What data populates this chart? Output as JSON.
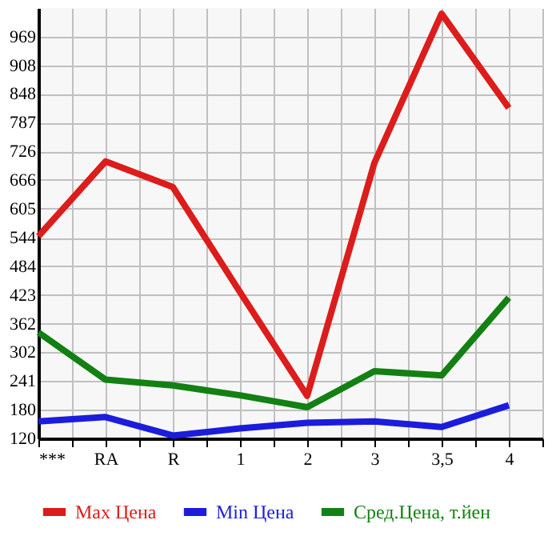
{
  "chart_data": {
    "type": "line",
    "categories": [
      "***",
      "RA",
      "R",
      "1",
      "2",
      "3",
      "3,5",
      "4"
    ],
    "series": [
      {
        "name": "Max Цена",
        "color": "#dd1c1c",
        "values": [
          547,
          705,
          651,
          429,
          210,
          702,
          1017,
          818
        ]
      },
      {
        "name": "Min Цена",
        "color": "#1c1cdd",
        "values": [
          156,
          165,
          126,
          141,
          153,
          156,
          144,
          190
        ]
      },
      {
        "name": "Сред.Цена, т.йен",
        "color": "#138013",
        "values": [
          344,
          244,
          232,
          211,
          186,
          262,
          253,
          417
        ]
      }
    ],
    "ylim": [
      120,
      1029
    ],
    "yticks": [
      120,
      180,
      241,
      302,
      362,
      423,
      484,
      544,
      605,
      666,
      726,
      787,
      848,
      908,
      969
    ],
    "grid": true,
    "legend": "bottom",
    "marker": "none",
    "line_style": "solid"
  }
}
